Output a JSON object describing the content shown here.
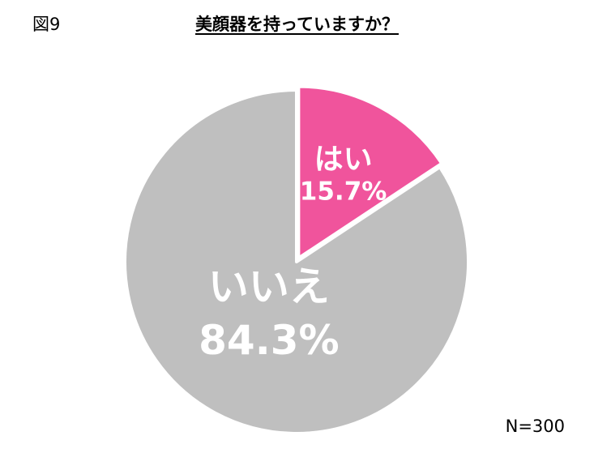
{
  "figure_label": "図9",
  "sample_size": "N=300",
  "colors": {
    "yes": "#f0549c",
    "no": "#bfbfbf",
    "separator": "#ffffff"
  },
  "chart_data": {
    "type": "pie",
    "title": "美顔器を持っていますか？",
    "start": "12 o'clock, clockwise",
    "slices": [
      {
        "label": "はい",
        "value": 15.7,
        "value_label": "15.7%",
        "color": "#f0549c",
        "exploded": true
      },
      {
        "label": "いいえ",
        "value": 84.3,
        "value_label": "84.3%",
        "color": "#bfbfbf",
        "exploded": false
      }
    ]
  }
}
